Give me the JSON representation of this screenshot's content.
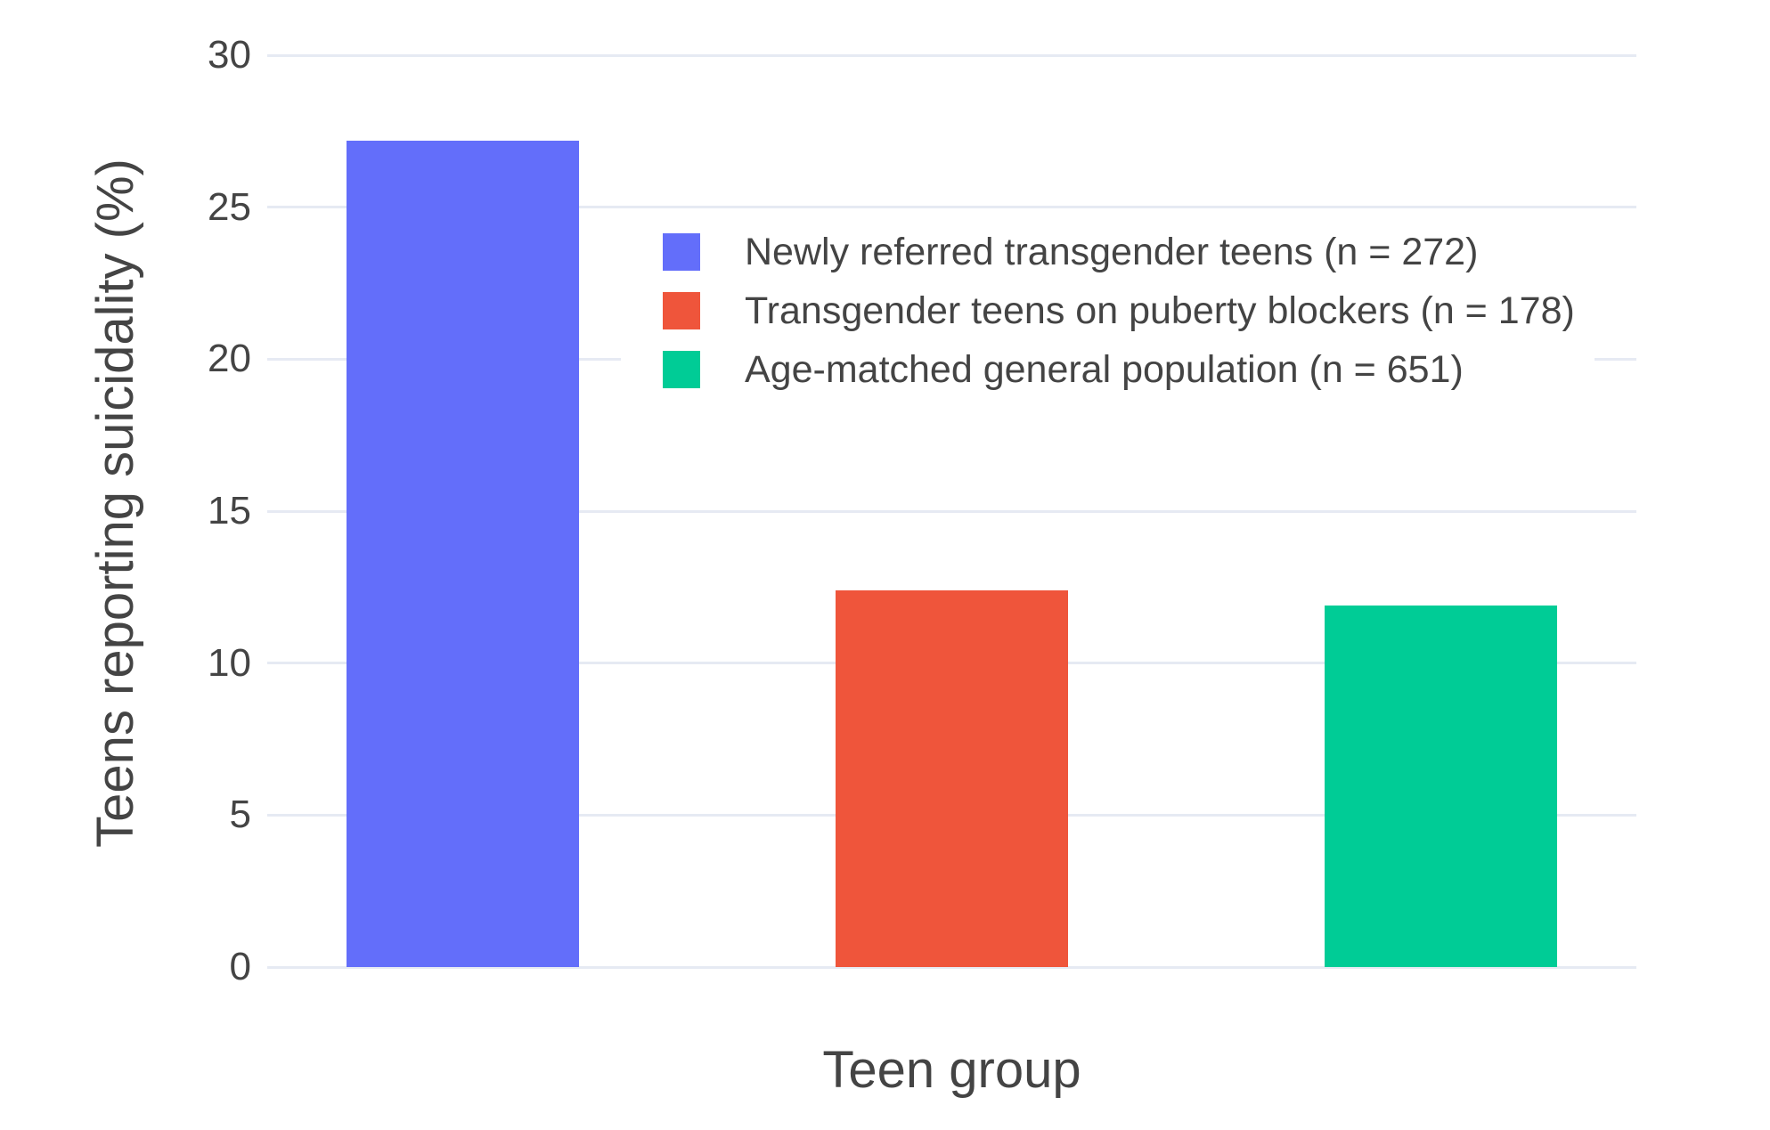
{
  "figure": {
    "background": "#FFFFFF",
    "grid_color": "#E6EAF3",
    "text_color": "#444444"
  },
  "chart_data": {
    "type": "bar",
    "title": "",
    "xlabel": "Teen group",
    "ylabel": "Teens reporting suicidality (%)",
    "categories": [
      "Newly referred transgender teens (n = 272)",
      "Transgender teens on puberty blockers (n = 178)",
      "Age-matched general population (n = 651)"
    ],
    "values": [
      27.2,
      12.4,
      11.9
    ],
    "bar_colors": [
      "#636EFA",
      "#EF553B",
      "#00CC96"
    ],
    "yticks": [
      0,
      5,
      10,
      15,
      20,
      25,
      30
    ],
    "ylim": [
      0,
      30.5
    ],
    "grid": "horizontal",
    "legend": {
      "position": "inside-top-right",
      "entries": [
        {
          "label": "Newly referred transgender teens (n = 272)",
          "color": "#636EFA"
        },
        {
          "label": "Transgender teens on puberty blockers (n = 178)",
          "color": "#EF553B"
        },
        {
          "label": "Age-matched general population (n = 651)",
          "color": "#00CC96"
        }
      ]
    }
  }
}
